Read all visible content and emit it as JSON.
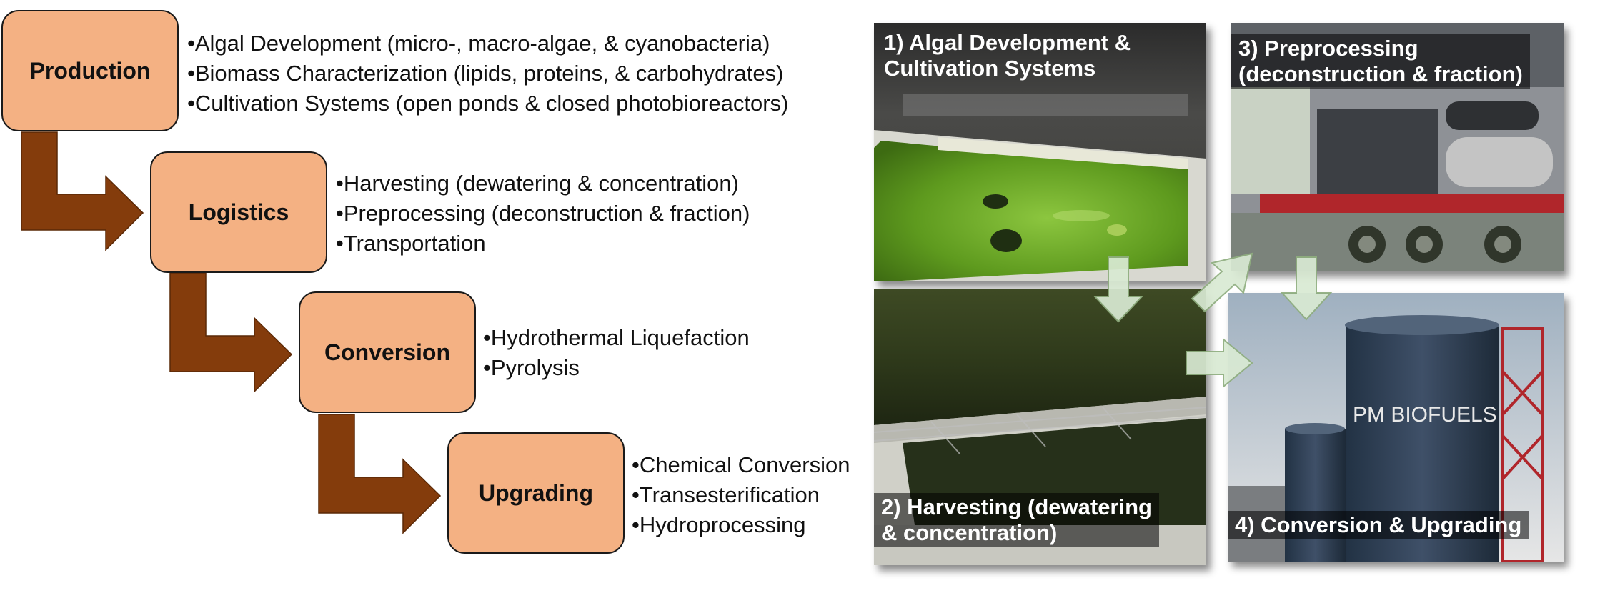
{
  "stages": [
    {
      "label": "Production",
      "items": [
        "•Algal Development (micro-, macro-algae, & cyanobacteria)",
        "•Biomass Characterization (lipids, proteins, & carbohydrates)",
        "•Cultivation Systems (open ponds & closed photobioreactors)"
      ]
    },
    {
      "label": "Logistics",
      "items": [
        "•Harvesting  (dewatering & concentration)",
        "•Preprocessing (deconstruction & fraction)",
        "•Transportation"
      ]
    },
    {
      "label": "Conversion",
      "items": [
        "•Hydrothermal Liquefaction",
        "•Pyrolysis"
      ]
    },
    {
      "label": "Upgrading",
      "items": [
        "•Chemical Conversion",
        "•Transesterification",
        "•Hydroprocessing"
      ]
    }
  ],
  "photos": [
    {
      "caption_line1": "1) Algal Development &",
      "caption_line2": "Cultivation Systems",
      "scene": "algae-pond"
    },
    {
      "caption_line1": "2) Harvesting  (dewatering",
      "caption_line2": "& concentration)",
      "scene": "harvested-biomass"
    },
    {
      "caption_line1": "3) Preprocessing",
      "caption_line2": "(deconstruction & fraction)",
      "scene": "processing-trailer"
    },
    {
      "caption_line1": "4) Conversion & Upgrading",
      "caption_line2": "",
      "scene": "biofuel-tanks"
    }
  ],
  "tank_sign": "PM BIOFUELS",
  "colors": {
    "box_fill": "#f4b183",
    "flow_arrow": "#843c0c",
    "overlay_arrow": "#d9ead3"
  }
}
